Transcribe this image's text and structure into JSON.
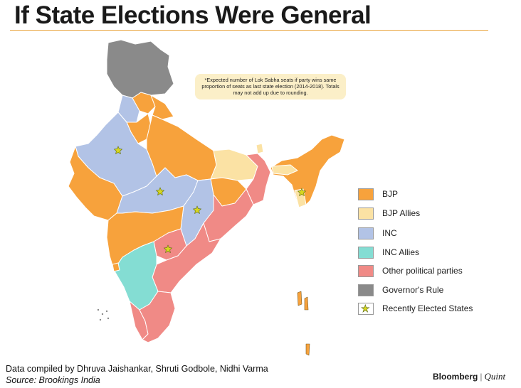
{
  "title": "If State Elections Were General",
  "note": "*Expected number of Lok Sabha seats if party wins same proportion of seats as last state election (2014-2018). Totals may not add up due to rounding.",
  "colors": {
    "bjp": "#f7a23c",
    "bjp_allies": "#fbe2a4",
    "inc": "#b2c3e6",
    "inc_allies": "#84ddd3",
    "other": "#f08a86",
    "governor": "#8a8a8a",
    "accent_rule": "#e8a33a"
  },
  "legend": [
    {
      "label": "BJP",
      "color": "#f7a23c"
    },
    {
      "label": "BJP Allies",
      "color": "#fbe2a4"
    },
    {
      "label": "INC",
      "color": "#b2c3e6"
    },
    {
      "label": "INC Allies",
      "color": "#84ddd3"
    },
    {
      "label": "Other political parties",
      "color": "#f08a86"
    },
    {
      "label": "Governor's Rule",
      "color": "#8a8a8a"
    },
    {
      "label": "Recently Elected States",
      "icon": "star-icon"
    }
  ],
  "footer": {
    "credit": "Data compiled by Dhruva Jaishankar, Shruti Godbole, Nidhi Varma",
    "source": "Source: Brookings India",
    "brand_main": "Bloomberg",
    "brand_sep": "|",
    "brand_sub": "Quint"
  }
}
